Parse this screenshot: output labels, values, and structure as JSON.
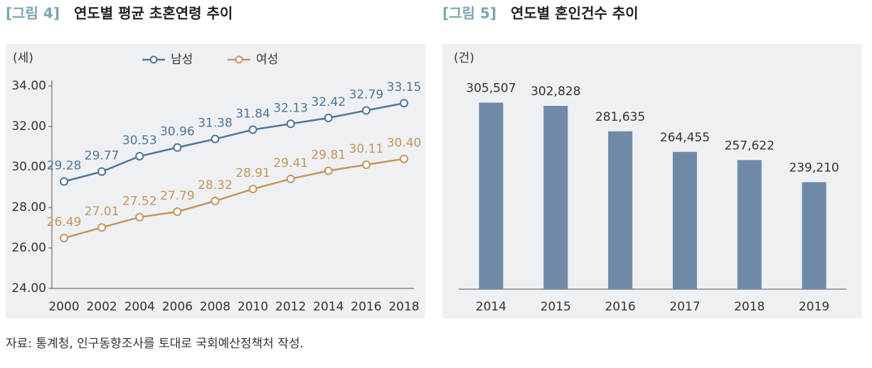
{
  "chart_data": [
    {
      "type": "line",
      "figure_label": "[그림 4]",
      "title": "연도별 평균 초혼연령 추이",
      "y_label": "(세)",
      "categories": [
        "2000",
        "2002",
        "2004",
        "2006",
        "2008",
        "2010",
        "2012",
        "2014",
        "2016",
        "2018"
      ],
      "series": [
        {
          "name": "남성",
          "color": "#4f7696",
          "values": [
            29.28,
            29.77,
            30.53,
            30.96,
            31.38,
            31.84,
            32.13,
            32.42,
            32.79,
            33.15
          ],
          "value_labels": [
            "29.28",
            "29.77",
            "30.53",
            "30.96",
            "31.38",
            "31.84",
            "32.13",
            "32.42",
            "32.79",
            "33.15"
          ]
        },
        {
          "name": "여성",
          "color": "#c4965a",
          "values": [
            26.49,
            27.01,
            27.52,
            27.79,
            28.32,
            28.91,
            29.41,
            29.81,
            30.11,
            30.4
          ],
          "value_labels": [
            "26.49",
            "27.01",
            "27.52",
            "27.79",
            "28.32",
            "28.91",
            "29.41",
            "29.81",
            "30.11",
            "30.40"
          ]
        }
      ],
      "ylim": [
        24,
        34
      ],
      "yticks": [
        {
          "value": 24,
          "label": "24.00"
        },
        {
          "value": 26,
          "label": "26.00"
        },
        {
          "value": 28,
          "label": "28.00"
        },
        {
          "value": 30,
          "label": "30.00"
        },
        {
          "value": 32,
          "label": "32.00"
        },
        {
          "value": 34,
          "label": "34.00"
        }
      ],
      "grid": false,
      "legend": "top"
    },
    {
      "type": "bar",
      "figure_label": "[그림 5]",
      "title": "연도별 혼인건수 추이",
      "y_label": "(건)",
      "categories": [
        "2014",
        "2015",
        "2016",
        "2017",
        "2018",
        "2019"
      ],
      "values": [
        305507,
        302828,
        281635,
        264455,
        257622,
        239210
      ],
      "value_labels": [
        "305,507",
        "302,828",
        "281,635",
        "264,455",
        "257,622",
        "239,210"
      ],
      "color": "#6e8aa6",
      "ylim": [
        150000,
        320000
      ],
      "grid": false
    }
  ],
  "source": "자료: 통계청, 인구동향조사를 토대로 국회예산정책처 작성."
}
